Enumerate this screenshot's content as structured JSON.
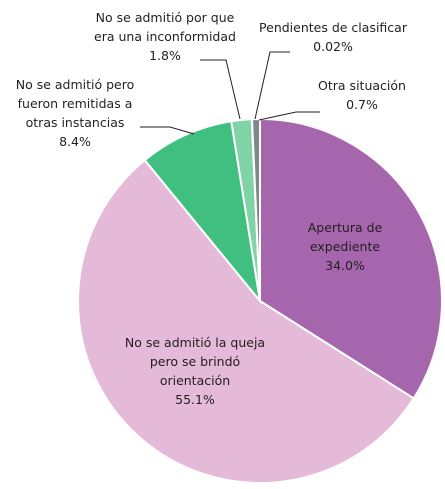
{
  "chart_data": {
    "type": "pie",
    "categories": [
      "Apertura de\nexpediente",
      "No se admitió la queja\npero se brindó\norientación",
      "No se admitió pero\nfueron remitidas a\notras instancias",
      "No se admitió por que\nera una inconformidad",
      "Pendientes de clasificar",
      "Otra situación"
    ],
    "values": [
      34.0,
      55.1,
      8.4,
      1.8,
      0.02,
      0.7
    ],
    "value_labels": [
      "34.0%",
      "55.1%",
      "8.4%",
      "1.8%",
      "0.02%",
      "0.7%"
    ],
    "colors": [
      "#a666ad",
      "#e5b9d8",
      "#41bf80",
      "#80d3a5",
      "#4d5557",
      "#7d898b"
    ]
  }
}
